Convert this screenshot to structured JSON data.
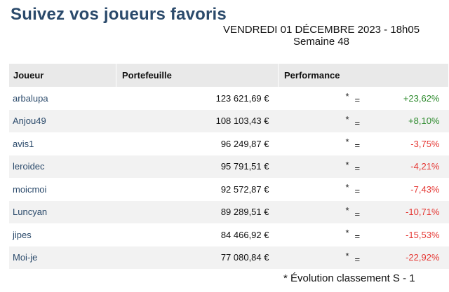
{
  "header": {
    "title": "Suivez vos joueurs favoris",
    "date_line": "VENDREDI 01 DÉCEMBRE 2023 - 18h05",
    "week_line": "Semaine 48"
  },
  "table": {
    "columns": [
      "Joueur",
      "Portefeuille",
      "Performance"
    ],
    "rows": [
      {
        "player": "arbalupa",
        "portfolio": "123 621,69 €",
        "rank_star": "*",
        "rank_symbol": "=",
        "performance": "+23,62%",
        "trend": "positive"
      },
      {
        "player": "Anjou49",
        "portfolio": "108 103,43 €",
        "rank_star": "*",
        "rank_symbol": "=",
        "performance": "+8,10%",
        "trend": "positive"
      },
      {
        "player": "avis1",
        "portfolio": "96 249,87 €",
        "rank_star": "*",
        "rank_symbol": "=",
        "performance": "-3,75%",
        "trend": "negative"
      },
      {
        "player": "leroidec",
        "portfolio": "95 791,51 €",
        "rank_star": "*",
        "rank_symbol": "=",
        "performance": "-4,21%",
        "trend": "negative"
      },
      {
        "player": "moicmoi",
        "portfolio": "92 572,87 €",
        "rank_star": "*",
        "rank_symbol": "=",
        "performance": "-7,43%",
        "trend": "negative"
      },
      {
        "player": "Luncyan",
        "portfolio": "89 289,51 €",
        "rank_star": "*",
        "rank_symbol": "=",
        "performance": "-10,71%",
        "trend": "negative"
      },
      {
        "player": "jipes",
        "portfolio": "84 466,92 €",
        "rank_star": "*",
        "rank_symbol": "=",
        "performance": "-15,53%",
        "trend": "negative"
      },
      {
        "player": "Moi-je",
        "portfolio": "77 080,84 €",
        "rank_star": "*",
        "rank_symbol": "=",
        "performance": "-22,92%",
        "trend": "negative"
      }
    ]
  },
  "footnote": "* Évolution classement S - 1",
  "colors": {
    "title": "#2b4a6b",
    "positive": "#2e8b2e",
    "negative": "#e53935",
    "header_bg": "#e9e9e9",
    "stripe_bg": "#f2f2f2"
  }
}
